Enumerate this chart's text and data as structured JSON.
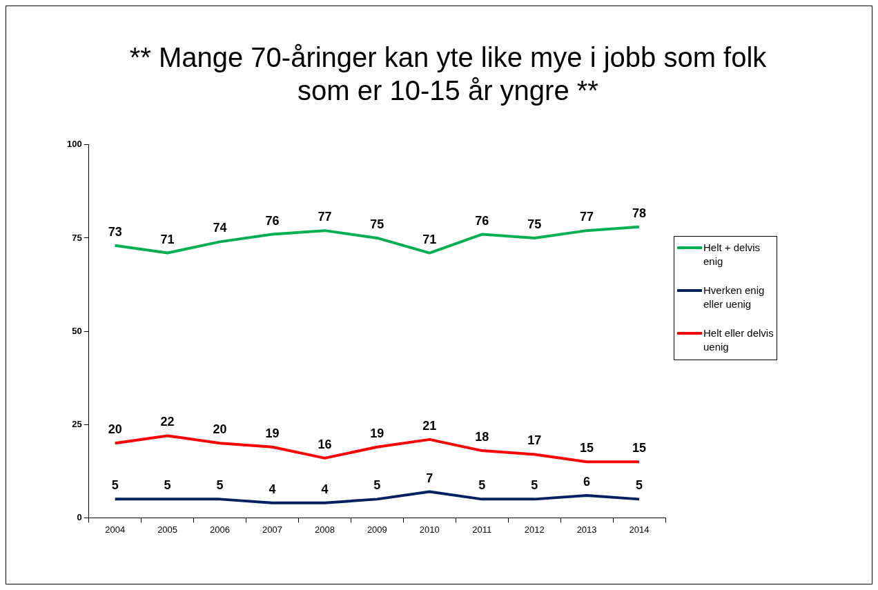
{
  "chart_data": {
    "type": "line",
    "title": "** Mange 70-åringer kan yte like mye i jobb som folk som er 10-15 år yngre **",
    "categories": [
      "2004",
      "2005",
      "2006",
      "2007",
      "2008",
      "2009",
      "2010",
      "2011",
      "2012",
      "2013",
      "2014"
    ],
    "series": [
      {
        "name": "Helt + delvis enig",
        "color": "#00b050",
        "values": [
          73,
          71,
          74,
          76,
          77,
          75,
          71,
          76,
          75,
          77,
          78
        ]
      },
      {
        "name": "Hverken enig eller uenig",
        "color": "#002060",
        "values": [
          5,
          5,
          5,
          4,
          4,
          5,
          7,
          5,
          5,
          6,
          5
        ]
      },
      {
        "name": "Helt eller delvis uenig",
        "color": "#ff0000",
        "values": [
          20,
          22,
          20,
          19,
          16,
          19,
          21,
          18,
          17,
          15,
          15
        ]
      }
    ],
    "ylim": [
      0,
      100
    ],
    "yticks": [
      0,
      25,
      50,
      75,
      100
    ],
    "grid": false,
    "legend": "right",
    "marker": "none",
    "line_style": "solid",
    "data_labels": true
  }
}
